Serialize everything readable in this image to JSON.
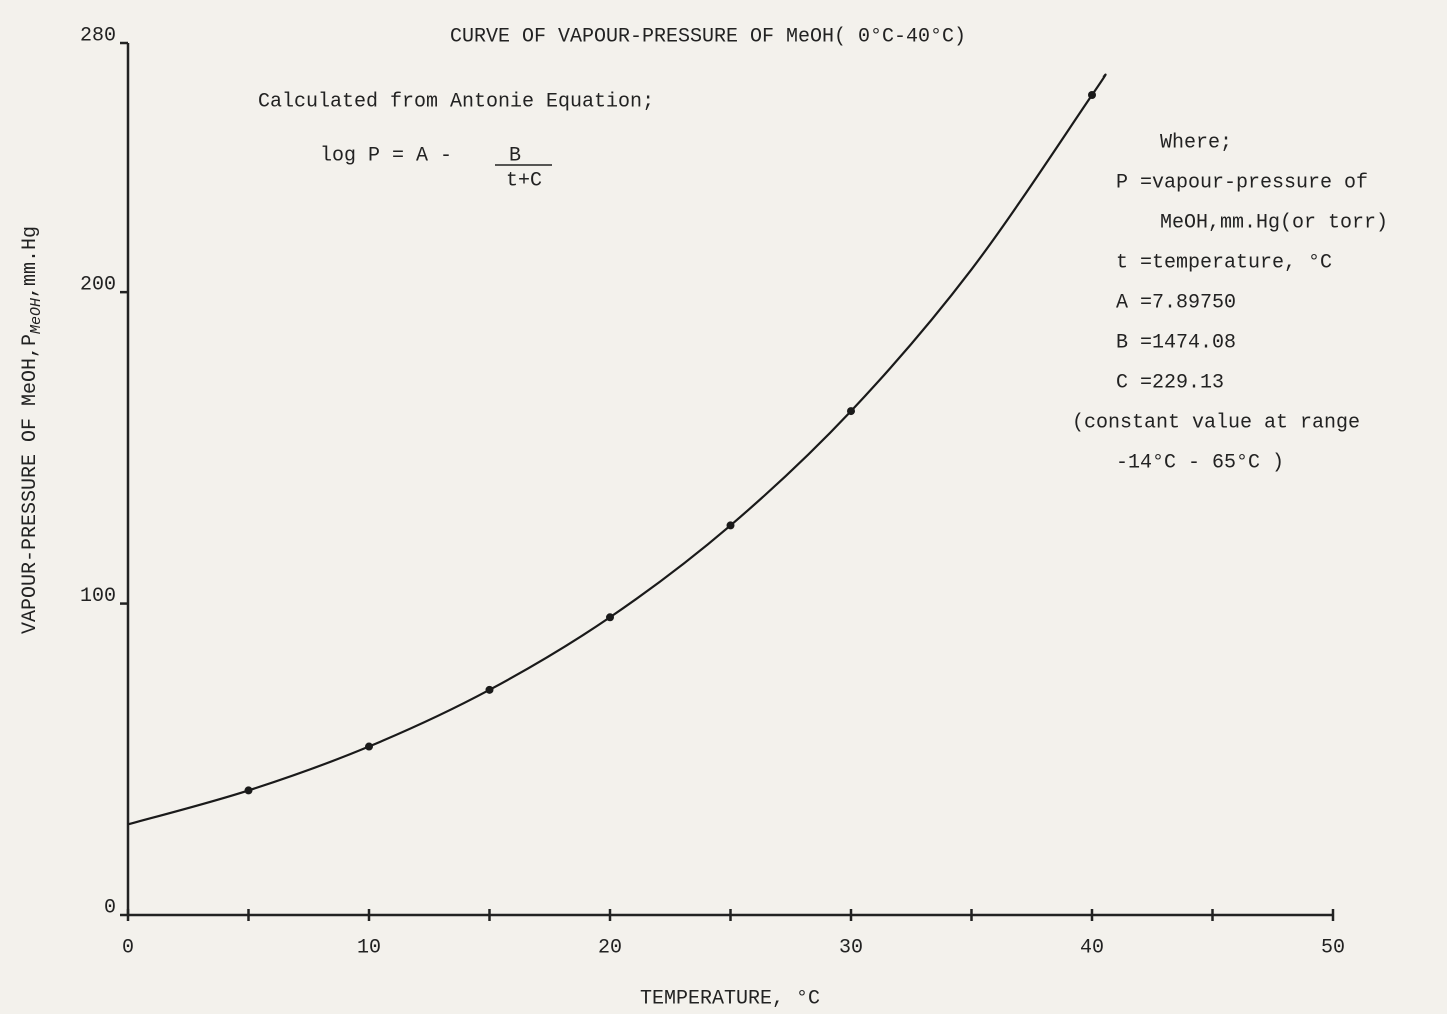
{
  "chart_data": {
    "type": "line",
    "title": "CURVE OF VAPOUR-PRESSURE OF MeOH( 0°C-40°C)",
    "xlabel": "TEMPERATURE, °C",
    "ylabel": "VAPOUR-PRESSURE OF MeOH,P",
    "ylabel_subscript": "MeOH",
    "ylabel_unit": ",mm.Hg",
    "annotation": "Calculated from Antonie Equation;",
    "equation": "log P = A -",
    "equation_numerator": "B",
    "equation_denominator": "t+C",
    "notes": [
      "Where;",
      "P =vapour-pressure of",
      "MeOH,mm.Hg(or torr)",
      "t =temperature, °C",
      "A =7.89750",
      "B =1474.08",
      "C =229.13",
      "(constant value at range",
      "-14°C - 65°C )"
    ],
    "xlim": [
      0,
      50
    ],
    "xticks": [
      0,
      10,
      20,
      30,
      40,
      50
    ],
    "xminor": [
      5,
      15,
      25,
      35,
      45
    ],
    "ylim": [
      0,
      280
    ],
    "yticks": [
      0,
      100,
      200,
      280
    ],
    "series": [
      {
        "style": "curve",
        "color": "#1a1a1a",
        "x": [
          0,
          5,
          10,
          15,
          20,
          25,
          30,
          35,
          40,
          40.5
        ],
        "values": [
          29.1,
          40.0,
          54.1,
          72.3,
          95.6,
          125.1,
          161.8,
          207.3,
          263.3,
          269.4
        ]
      },
      {
        "style": "points",
        "color": "#1a1a1a",
        "x": [
          5,
          10,
          15,
          20,
          25,
          30,
          40
        ],
        "values": [
          40.0,
          54.1,
          72.3,
          95.6,
          125.1,
          161.8,
          263.3
        ]
      }
    ]
  }
}
